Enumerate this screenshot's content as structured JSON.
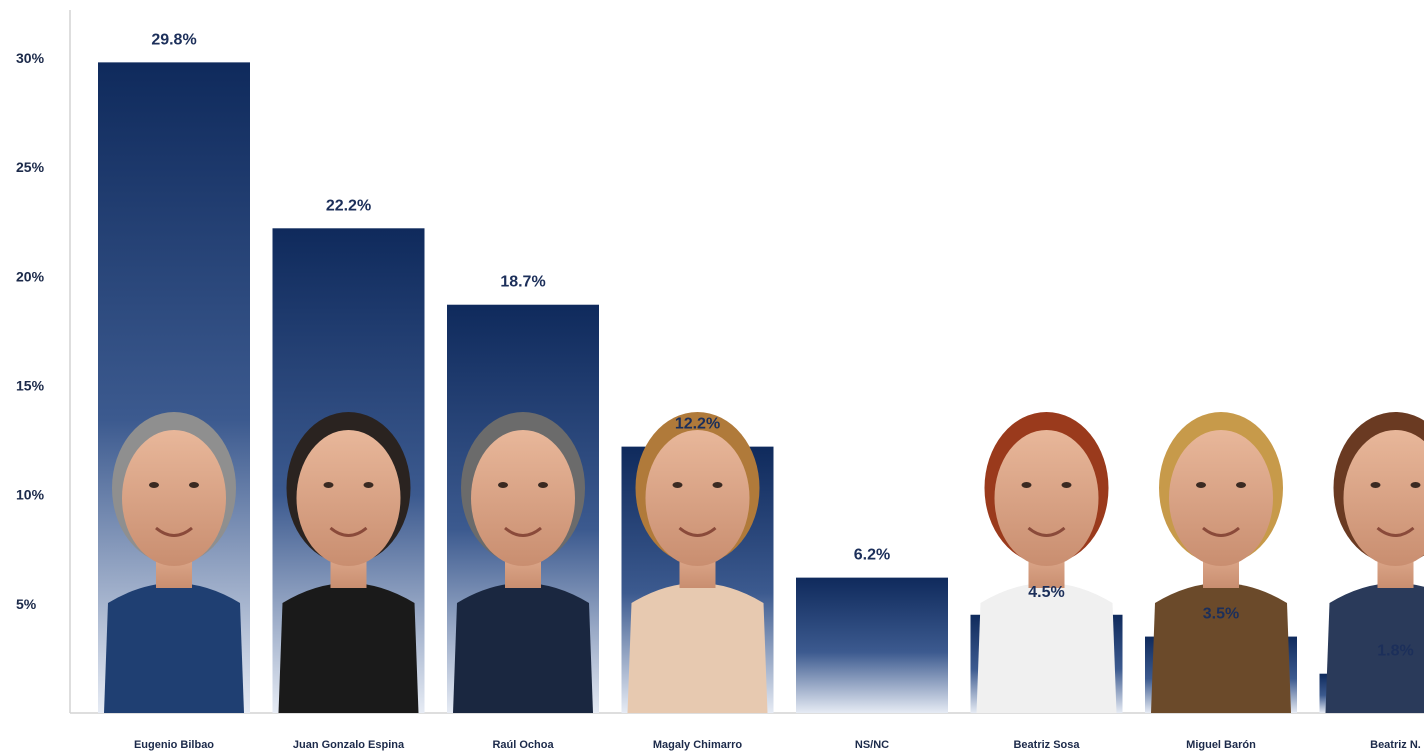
{
  "chart_data": {
    "type": "bar",
    "title": "",
    "xlabel": "",
    "ylabel": "",
    "ylim": [
      0,
      30
    ],
    "yticks": [
      "5%",
      "10%",
      "15%",
      "20%",
      "25%",
      "30%"
    ],
    "categories": [
      "Eugenio Bilbao",
      "Juan Gonzalo Espina",
      "Raúl Ochoa",
      "Magaly Chimarro",
      "NS/NC",
      "Beatriz Sosa",
      "Miguel Barón",
      "Beatriz N."
    ],
    "values": [
      29.8,
      22.2,
      18.7,
      12.2,
      6.2,
      4.5,
      3.5,
      1.8
    ],
    "value_labels": [
      "29.8%",
      "22.2%",
      "18.7%",
      "12.2%",
      "6.2%",
      "4.5%",
      "3.5%",
      "1.8%"
    ],
    "has_photo": [
      true,
      true,
      true,
      true,
      false,
      true,
      true,
      true
    ],
    "bar_color_top": "#0f2a5c",
    "bar_color_bottom": "#ffffff",
    "axis_color": "#d0d0d0",
    "grid": false,
    "legend": "none"
  }
}
